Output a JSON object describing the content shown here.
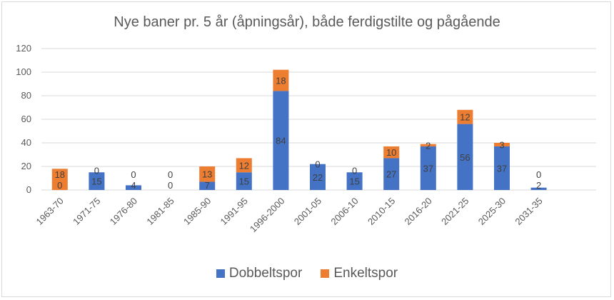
{
  "chart_data": {
    "type": "bar",
    "stacked": true,
    "title": "Nye baner pr. 5 år (åpningsår), både ferdigstilte og pågående",
    "xlabel": "",
    "ylabel": "",
    "ylim": [
      0,
      120
    ],
    "yticks": [
      0,
      20,
      40,
      60,
      80,
      100,
      120
    ],
    "grid": true,
    "legend": "bottom",
    "categories": [
      "1963-70",
      "1971-75",
      "1976-80",
      "1981-85",
      "1985-90",
      "1991-95",
      "1996-2000",
      "2001-05",
      "2006-10",
      "2010-15",
      "2016-20",
      "2021-25",
      "2025-30",
      "2031-35"
    ],
    "series": [
      {
        "name": "Dobbeltspor",
        "color": "#4472c4",
        "values": [
          0,
          15,
          4,
          0,
          7,
          15,
          84,
          22,
          15,
          27,
          37,
          56,
          37,
          2
        ]
      },
      {
        "name": "Enkeltspor",
        "color": "#ed7d31",
        "values": [
          18,
          0,
          0,
          0,
          13,
          12,
          18,
          0,
          0,
          10,
          2,
          12,
          3,
          0
        ]
      }
    ]
  }
}
